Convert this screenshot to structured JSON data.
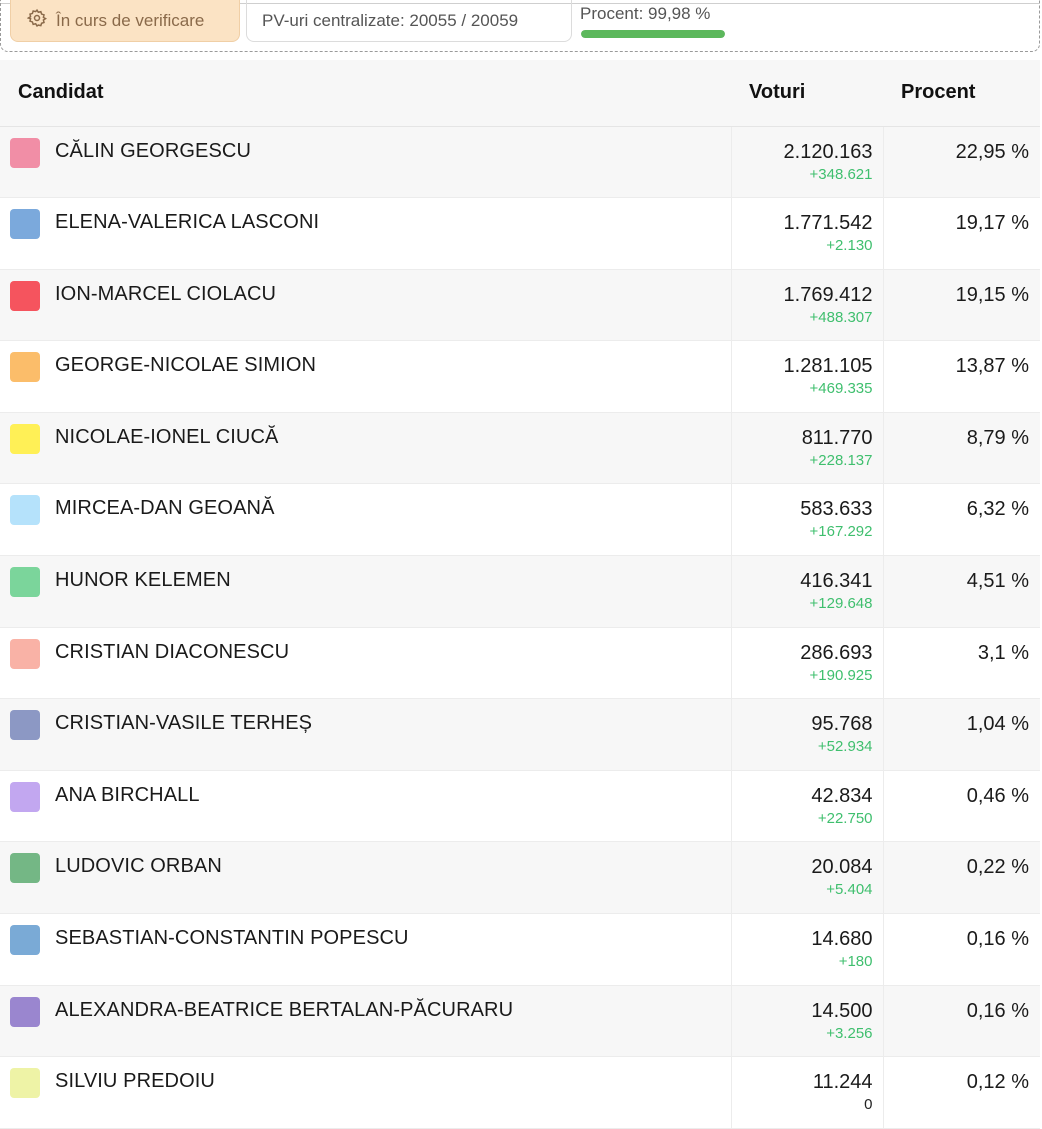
{
  "status": {
    "label": "În curs de verificare",
    "icon": "gear-icon"
  },
  "pv": {
    "text": "PV-uri centralizate: 20055 / 20059"
  },
  "progress": {
    "label": "Procent: 99,98 %",
    "value_percent": 99.98,
    "color": "#5cb85c"
  },
  "table": {
    "headers": {
      "candidate": "Candidat",
      "votes": "Voturi",
      "percent": "Procent"
    },
    "rows": [
      {
        "name": "CĂLIN GEORGESCU",
        "color": "#f18ea6",
        "votes": "2.120.163",
        "delta": "+348.621",
        "percent": "22,95 %"
      },
      {
        "name": "ELENA-VALERICA LASCONI",
        "color": "#7ba9dc",
        "votes": "1.771.542",
        "delta": "+2.130",
        "percent": "19,17 %"
      },
      {
        "name": "ION-MARCEL CIOLACU",
        "color": "#f5545e",
        "votes": "1.769.412",
        "delta": "+488.307",
        "percent": "19,15 %"
      },
      {
        "name": "GEORGE-NICOLAE SIMION",
        "color": "#fbbd6a",
        "votes": "1.281.105",
        "delta": "+469.335",
        "percent": "13,87 %"
      },
      {
        "name": "NICOLAE-IONEL CIUCĂ",
        "color": "#fff056",
        "votes": "811.770",
        "delta": "+228.137",
        "percent": "8,79 %"
      },
      {
        "name": "MIRCEA-DAN GEOANĂ",
        "color": "#b5e2fb",
        "votes": "583.633",
        "delta": "+167.292",
        "percent": "6,32 %"
      },
      {
        "name": "HUNOR KELEMEN",
        "color": "#7bd59b",
        "votes": "416.341",
        "delta": "+129.648",
        "percent": "4,51 %"
      },
      {
        "name": "CRISTIAN DIACONESCU",
        "color": "#f9b2a6",
        "votes": "286.693",
        "delta": "+190.925",
        "percent": "3,1 %"
      },
      {
        "name": "CRISTIAN-VASILE TERHEȘ",
        "color": "#8c98c4",
        "votes": "95.768",
        "delta": "+52.934",
        "percent": "1,04 %"
      },
      {
        "name": "ANA BIRCHALL",
        "color": "#c2a7f0",
        "votes": "42.834",
        "delta": "+22.750",
        "percent": "0,46 %"
      },
      {
        "name": "LUDOVIC ORBAN",
        "color": "#74b785",
        "votes": "20.084",
        "delta": "+5.404",
        "percent": "0,22 %"
      },
      {
        "name": "SEBASTIAN-CONSTANTIN POPESCU",
        "color": "#7aaad6",
        "votes": "14.680",
        "delta": "+180",
        "percent": "0,16 %"
      },
      {
        "name": "ALEXANDRA-BEATRICE BERTALAN-PĂCURARU",
        "color": "#9a86cf",
        "votes": "14.500",
        "delta": "+3.256",
        "percent": "0,16 %"
      },
      {
        "name": "SILVIU PREDOIU",
        "color": "#eef3a6",
        "votes": "11.244",
        "delta": "0",
        "percent": "0,12 %"
      }
    ]
  }
}
